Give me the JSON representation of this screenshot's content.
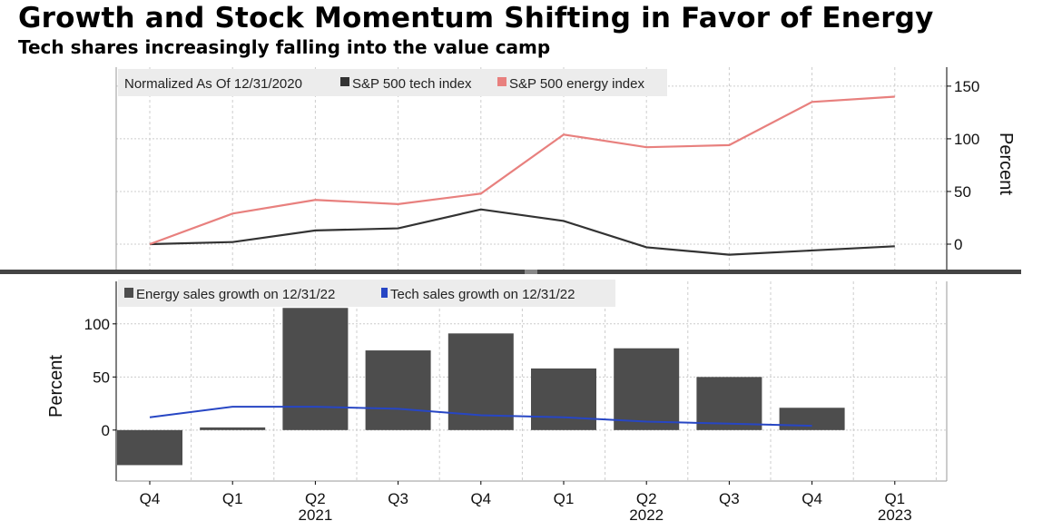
{
  "title": "Growth and Stock Momentum Shifting in Favor of Energy",
  "subtitle": "Tech shares increasingly falling into the value camp",
  "colors": {
    "energy_index": "#e8807e",
    "tech_index": "#333333",
    "energy_bars": "#4d4d4d",
    "tech_sales": "#2746c4"
  },
  "x_labels": [
    {
      "q": "Q4",
      "year": ""
    },
    {
      "q": "Q1",
      "year": ""
    },
    {
      "q": "Q2",
      "year": "2021"
    },
    {
      "q": "Q3",
      "year": ""
    },
    {
      "q": "Q4",
      "year": ""
    },
    {
      "q": "Q1",
      "year": ""
    },
    {
      "q": "Q2",
      "year": "2022"
    },
    {
      "q": "Q3",
      "year": ""
    },
    {
      "q": "Q4",
      "year": ""
    },
    {
      "q": "Q1",
      "year": "2023"
    }
  ],
  "chart_data": [
    {
      "type": "line",
      "legend_prefix": "Normalized As Of 12/31/2020",
      "categories": [
        "Q4 2020",
        "Q1 2021",
        "Q2 2021",
        "Q3 2021",
        "Q4 2021",
        "Q1 2022",
        "Q2 2022",
        "Q3 2022",
        "Q4 2022",
        "Q1 2023"
      ],
      "series": [
        {
          "name": "S&P 500 tech index",
          "values": [
            0,
            2,
            13,
            15,
            33,
            22,
            -3,
            -10,
            -6,
            -2
          ]
        },
        {
          "name": "S&P 500 energy index",
          "values": [
            0,
            29,
            42,
            38,
            48,
            104,
            92,
            94,
            135,
            140
          ]
        }
      ],
      "ylabel": "Percent",
      "ylim": [
        -25,
        168
      ],
      "yticks": [
        "0",
        "50",
        "100",
        "150"
      ],
      "yaxis": "right",
      "grid": true,
      "legend": "top-left"
    },
    {
      "type": "bar",
      "categories": [
        "Q4 2020",
        "Q1 2021",
        "Q2 2021",
        "Q3 2021",
        "Q4 2021",
        "Q1 2022",
        "Q2 2022",
        "Q3 2022",
        "Q4 2022",
        "Q1 2023"
      ],
      "series": [
        {
          "name": "Energy sales growth on 12/31/22",
          "type": "bar",
          "values": [
            -33,
            2.5,
            115,
            75,
            91,
            58,
            77,
            50,
            21,
            null
          ]
        },
        {
          "name": "Tech sales growth on 12/31/22",
          "type": "line",
          "values": [
            12,
            22,
            22,
            20,
            14,
            12,
            8,
            6,
            4,
            null
          ]
        }
      ],
      "ylabel": "Percent",
      "ylim": [
        -48,
        140
      ],
      "yticks": [
        "0",
        "50",
        "100"
      ],
      "yaxis": "left",
      "grid": true,
      "legend": "top-left"
    }
  ]
}
